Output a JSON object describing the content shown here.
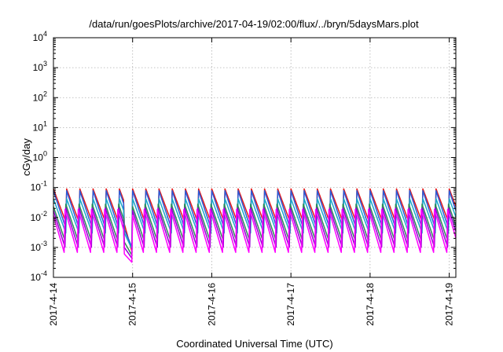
{
  "chart_data": {
    "type": "line",
    "title": "/data/run/goesPlots/archive/2017-04-19/02:00/flux/../bryn/5daysMars.plot",
    "xlabel": "Coordinated Universal Time (UTC)",
    "ylabel": "cGy/day",
    "x_range": [
      "2017-04-14T00:00",
      "2017-04-19T02:00"
    ],
    "x_ticks": [
      "2017-4-14",
      "2017-4-15",
      "2017-4-16",
      "2017-4-17",
      "2017-4-18",
      "2017-4-19"
    ],
    "y_scale": "log",
    "y_range": [
      0.0001,
      10000
    ],
    "y_ticks": [
      {
        "base": "10",
        "exp": "-4"
      },
      {
        "base": "10",
        "exp": "-3"
      },
      {
        "base": "10",
        "exp": "-2"
      },
      {
        "base": "10",
        "exp": "-1"
      },
      {
        "base": "10",
        "exp": "0"
      },
      {
        "base": "10",
        "exp": "1"
      },
      {
        "base": "10",
        "exp": "2"
      },
      {
        "base": "10",
        "exp": "3"
      },
      {
        "base": "10",
        "exp": "4"
      }
    ],
    "grid": true,
    "legend": "none",
    "sawtooth_period_hours": 4,
    "dip_interval": [
      "2017-04-14T21:30",
      "2017-04-15T00:00"
    ],
    "series": [
      {
        "color": "#e41a1c",
        "peak": 0.09,
        "trough": 0.006,
        "dip_min": 0.0006
      },
      {
        "color": "#2a5bd7",
        "peak": 0.085,
        "trough": 0.004,
        "dip_min": 0.0009
      },
      {
        "color": "#1ca9c9",
        "peak": 0.05,
        "trough": 0.003,
        "dip_min": 0.0008
      },
      {
        "color": "#2e8b57",
        "peak": 0.03,
        "trough": 0.0015,
        "dip_min": 0.0005
      },
      {
        "color": "#9400d3",
        "peak": 0.025,
        "trough": 0.001,
        "dip_min": 0.0004
      },
      {
        "color": "#ff00ff",
        "peak": 0.02,
        "trough": 0.0006,
        "dip_min": 0.0003
      }
    ]
  }
}
